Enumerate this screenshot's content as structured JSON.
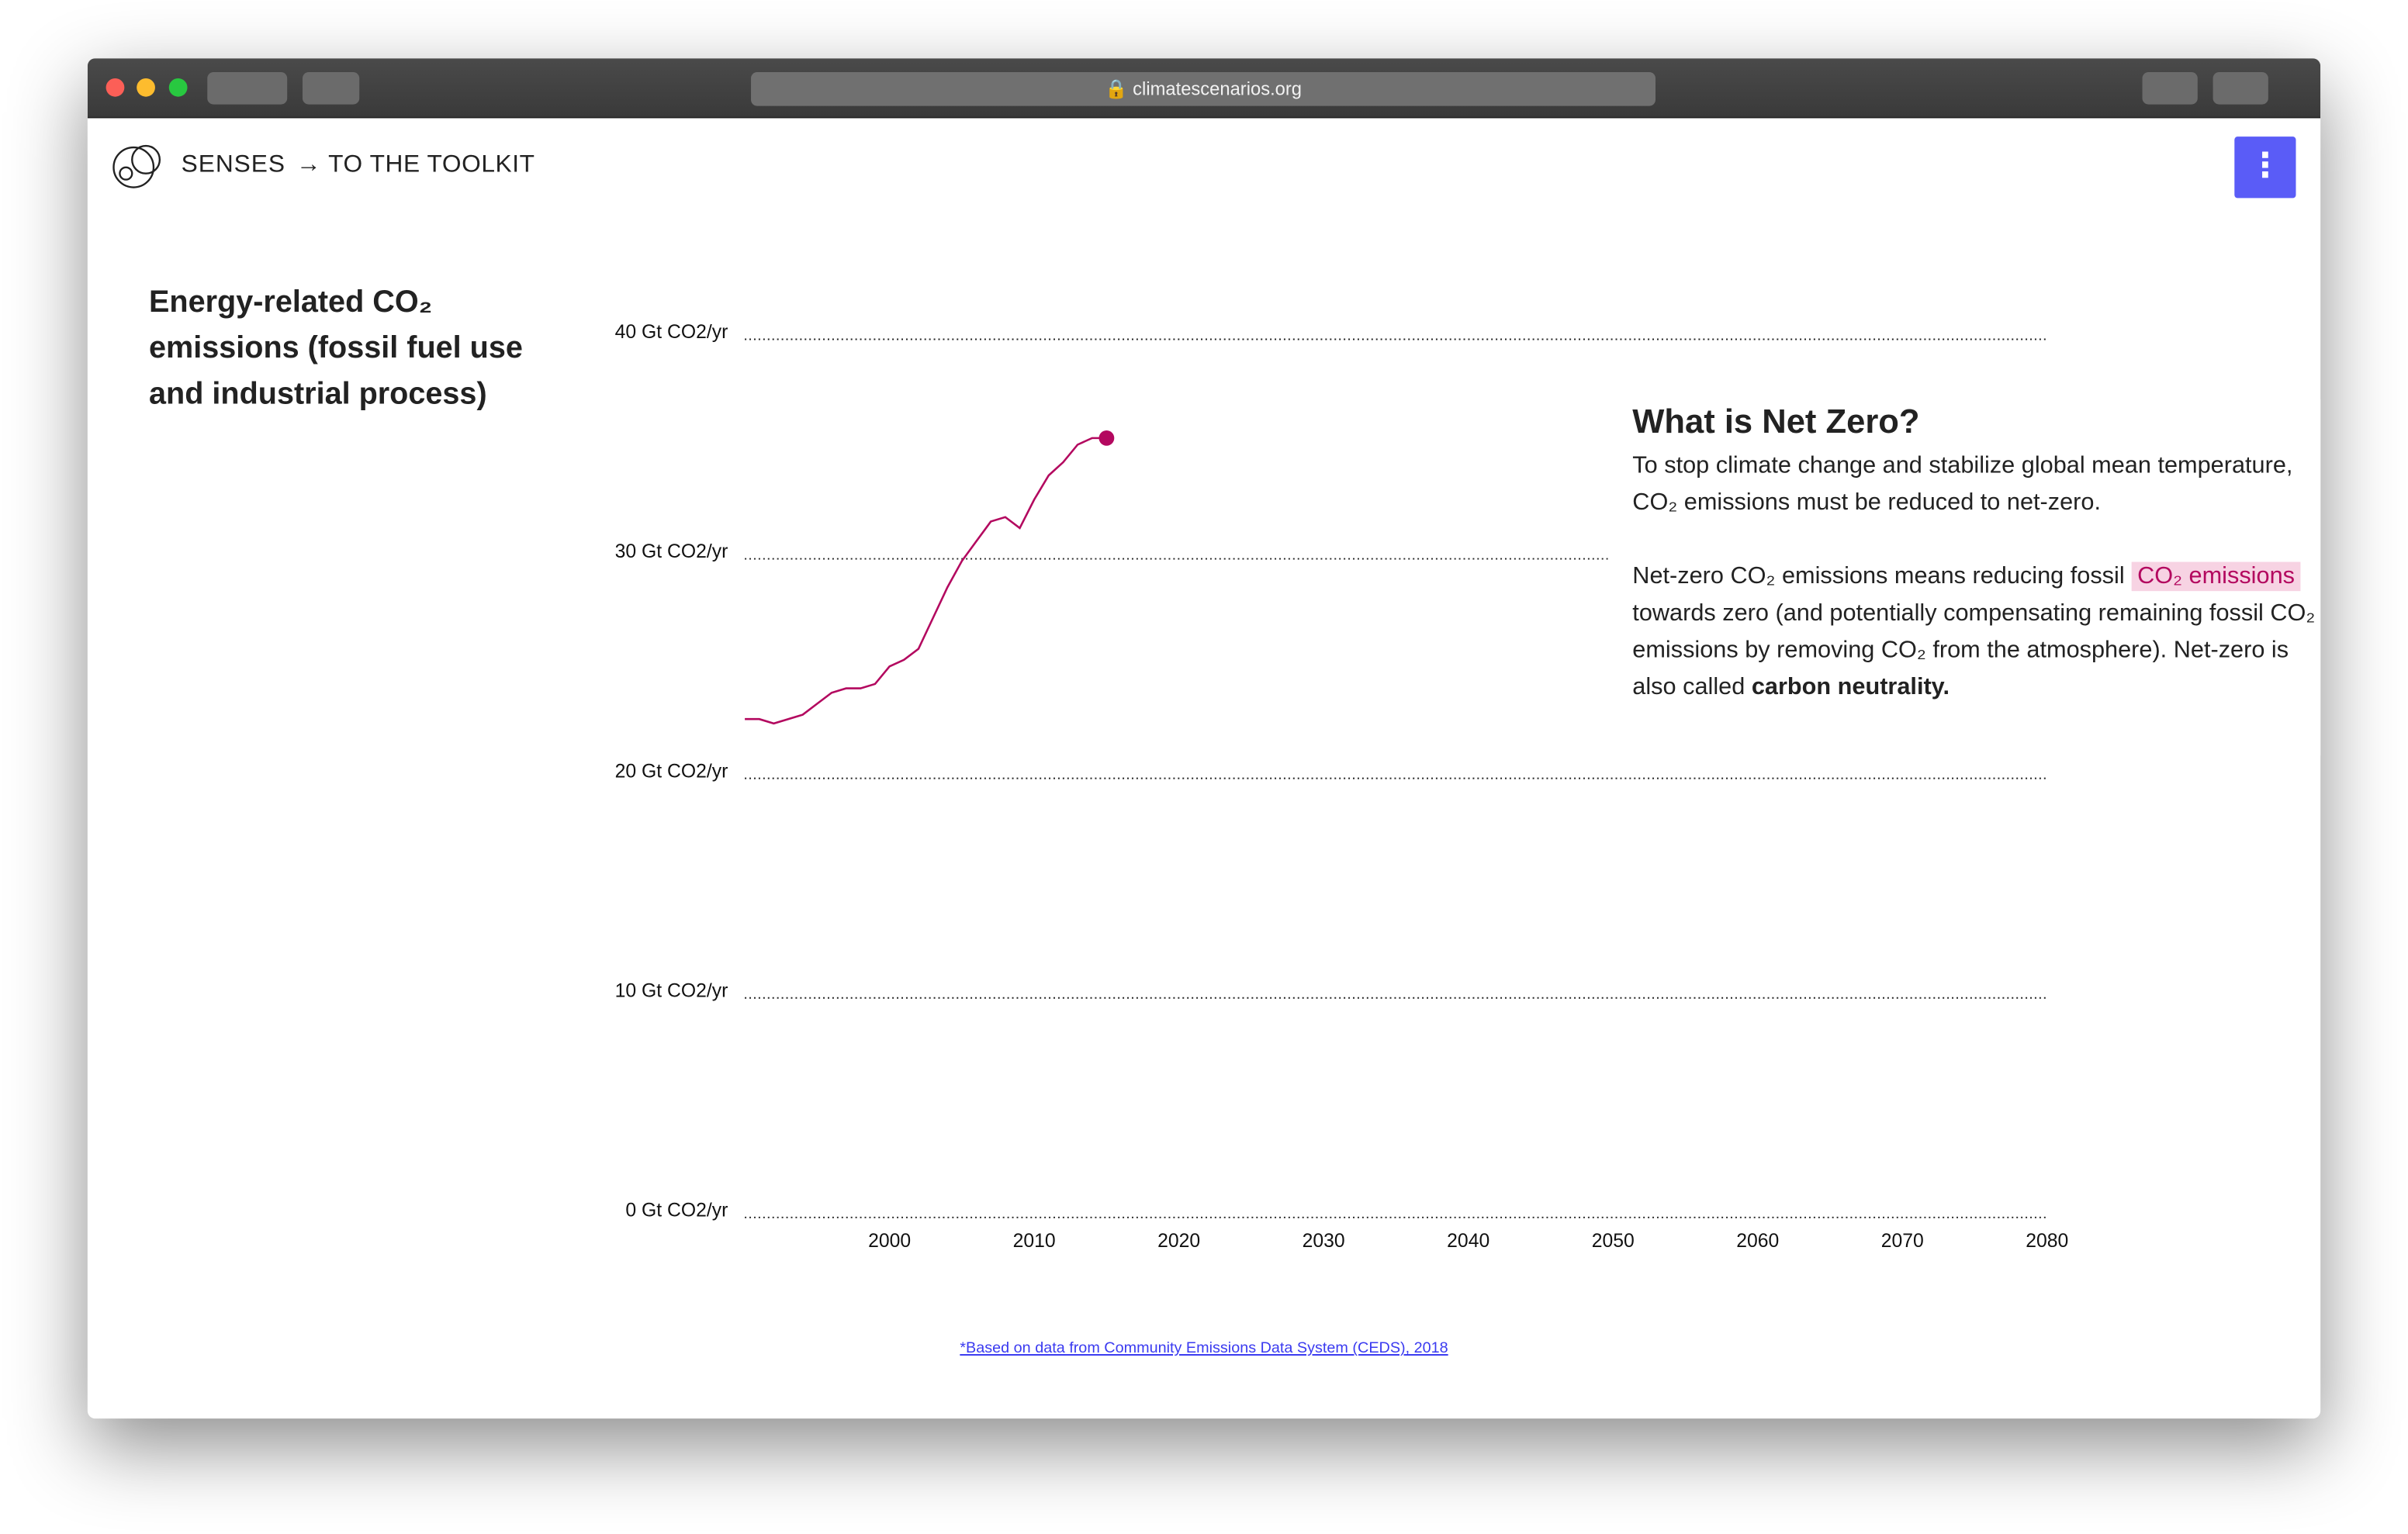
{
  "browser": {
    "url": "climatescenarios.org"
  },
  "nav": {
    "brand": "SENSES",
    "link": "→ TO THE TOOLKIT",
    "menu": "⋮"
  },
  "chart_data": {
    "type": "line",
    "title": "Energy-related CO₂ emissions (fossil fuel use and industrial process)",
    "x": [
      1990,
      1991,
      1992,
      1993,
      1994,
      1995,
      1996,
      1997,
      1998,
      1999,
      2000,
      2001,
      2002,
      2003,
      2004,
      2005,
      2006,
      2007,
      2008,
      2009,
      2010,
      2011,
      2012,
      2013,
      2014,
      2015
    ],
    "series": [
      {
        "color": "#b3085f",
        "values": [
          22.7,
          22.7,
          22.5,
          22.7,
          22.9,
          23.4,
          23.9,
          24.1,
          24.1,
          24.3,
          25.1,
          25.4,
          25.9,
          27.3,
          28.7,
          29.9,
          30.8,
          31.7,
          31.9,
          31.4,
          32.7,
          33.8,
          34.4,
          35.2,
          35.5,
          35.5
        ]
      }
    ],
    "xlim": [
      1990,
      2080
    ],
    "xticks": [
      2000,
      2010,
      2020,
      2030,
      2040,
      2050,
      2060,
      2070,
      2080
    ],
    "ylim": [
      0,
      40
    ],
    "yticks": [
      {
        "value": 0,
        "label": "0 Gt CO2/yr"
      },
      {
        "value": 10,
        "label": "10 Gt CO2/yr"
      },
      {
        "value": 20,
        "label": "20 Gt CO2/yr"
      },
      {
        "value": 30,
        "label": "30 Gt CO2/yr"
      },
      {
        "value": 40,
        "label": "40 Gt CO2/yr"
      }
    ],
    "grid": true
  },
  "panel": {
    "heading": "What is Net Zero?",
    "p1": "To stop climate change and stabilize global mean temperature, CO₂ emissions must be reduced to net-zero.",
    "p2a": "Net-zero CO₂ emissions means reducing fossil ",
    "p2link": "CO₂ emissions",
    "p2b": " towards zero (and potentially compensating remaining fossil CO₂ emissions by removing CO₂ from the atmosphere). Net-zero is also called ",
    "p2bold": "carbon neutrality."
  },
  "footnote": "*Based on data from Community Emissions Data System (CEDS), 2018"
}
